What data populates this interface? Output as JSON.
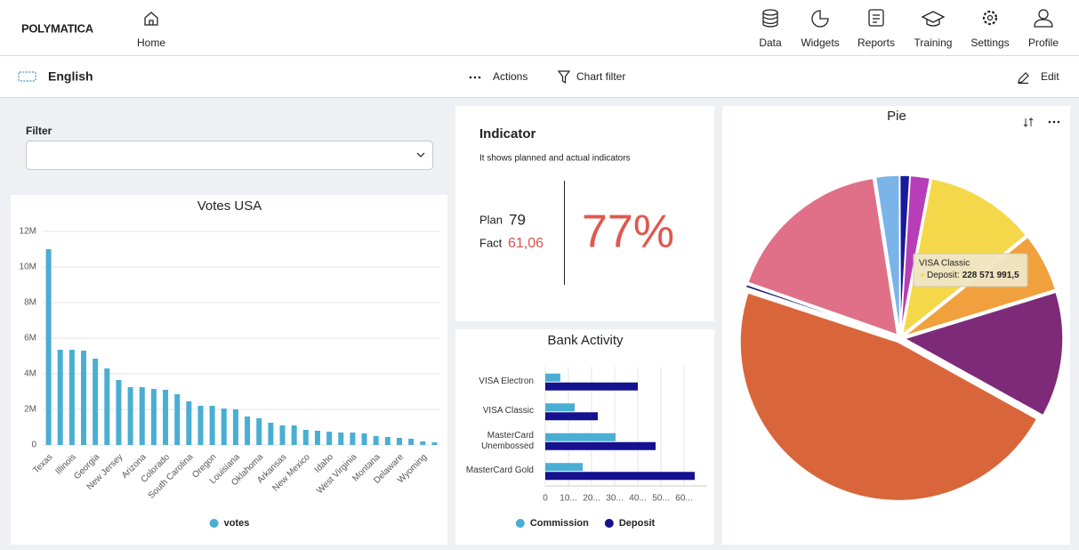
{
  "header": {
    "logo": "POLYMATICA",
    "nav": [
      "Home",
      "Data",
      "Widgets",
      "Reports",
      "Training",
      "Settings",
      "Profile"
    ]
  },
  "toolbar": {
    "language": "English",
    "actions": "Actions",
    "chart_filter": "Chart filter",
    "edit": "Edit"
  },
  "filter": {
    "label": "Filter"
  },
  "indicator": {
    "title": "Indicator",
    "subtitle": "It shows planned and actual indicators",
    "plan_label": "Plan",
    "plan_value": "79",
    "fact_label": "Fact",
    "fact_value": "61,06",
    "percent": "77%"
  },
  "chart_data": [
    {
      "type": "bar",
      "title": "Votes USA",
      "categories": [
        "Texas",
        null,
        "Illinois",
        null,
        "Georgia",
        null,
        "New Jersey",
        null,
        "Arizona",
        null,
        "Colorado",
        null,
        "South Carolina",
        null,
        "Oregon",
        null,
        "Louisiana",
        null,
        "Oklahoma",
        null,
        "Arkansas",
        null,
        "New Mexico",
        null,
        "Idaho",
        null,
        "West Virginia",
        null,
        "Montana",
        null,
        "Delaware",
        null,
        "Wyoming",
        null
      ],
      "series": [
        {
          "name": "votes",
          "color": "#4aaed3",
          "values": [
            11000000,
            5350000,
            5350000,
            5300000,
            4850000,
            4300000,
            3650000,
            3250000,
            3250000,
            3150000,
            3100000,
            2850000,
            2450000,
            2200000,
            2200000,
            2050000,
            2000000,
            1600000,
            1500000,
            1250000,
            1100000,
            1100000,
            850000,
            800000,
            750000,
            700000,
            700000,
            650000,
            500000,
            450000,
            400000,
            350000,
            200000,
            150000
          ]
        }
      ],
      "ylim": [
        0,
        12000000
      ],
      "yticks": [
        0,
        {
          "value": 2000000,
          "label": "2M"
        },
        {
          "value": 4000000,
          "label": "4M"
        },
        {
          "value": 6000000,
          "label": "6M"
        },
        {
          "value": 8000000,
          "label": "8M"
        },
        {
          "value": 10000000,
          "label": "10M"
        },
        {
          "value": 12000000,
          "label": "12M"
        }
      ],
      "grid": true,
      "legend": "bottom"
    },
    {
      "type": "hbar",
      "title": "Bank Activity",
      "categories": [
        "VISA Electron",
        "VISA Classic",
        "MasterCard Unembossed",
        "MasterCard Gold"
      ],
      "series": [
        {
          "name": "Commission",
          "color": "#4aaed3",
          "values": [
            6.5,
            12.7,
            30.4,
            16.2
          ]
        },
        {
          "name": "Deposit",
          "color": "#16128f",
          "values": [
            40,
            22.7,
            47.7,
            64.6
          ]
        }
      ],
      "xlim": [
        0,
        70
      ],
      "xticks": [
        0,
        {
          "value": 10,
          "label": "10..."
        },
        {
          "value": 20,
          "label": "20..."
        },
        {
          "value": 30,
          "label": "30..."
        },
        {
          "value": 40,
          "label": "40..."
        },
        {
          "value": 50,
          "label": "50..."
        },
        {
          "value": 60,
          "label": "60..."
        }
      ],
      "grid": true,
      "legend": "bottom"
    },
    {
      "type": "pie",
      "title": "Pie",
      "values": [
        2.4,
        1,
        2,
        11.3,
        6,
        12.8,
        47,
        0.3,
        17.2
      ],
      "colors": [
        "#7ab4e8",
        "#1a1a9a",
        "#b83db8",
        "#f5d84a",
        "#f0a03c",
        "#7d2a78",
        "#d9663a",
        "#1a1a7a",
        "#e07088"
      ],
      "tooltip": {
        "title": "VISA Classic",
        "series": "Deposit:",
        "value": "228 571 991,5"
      }
    }
  ]
}
